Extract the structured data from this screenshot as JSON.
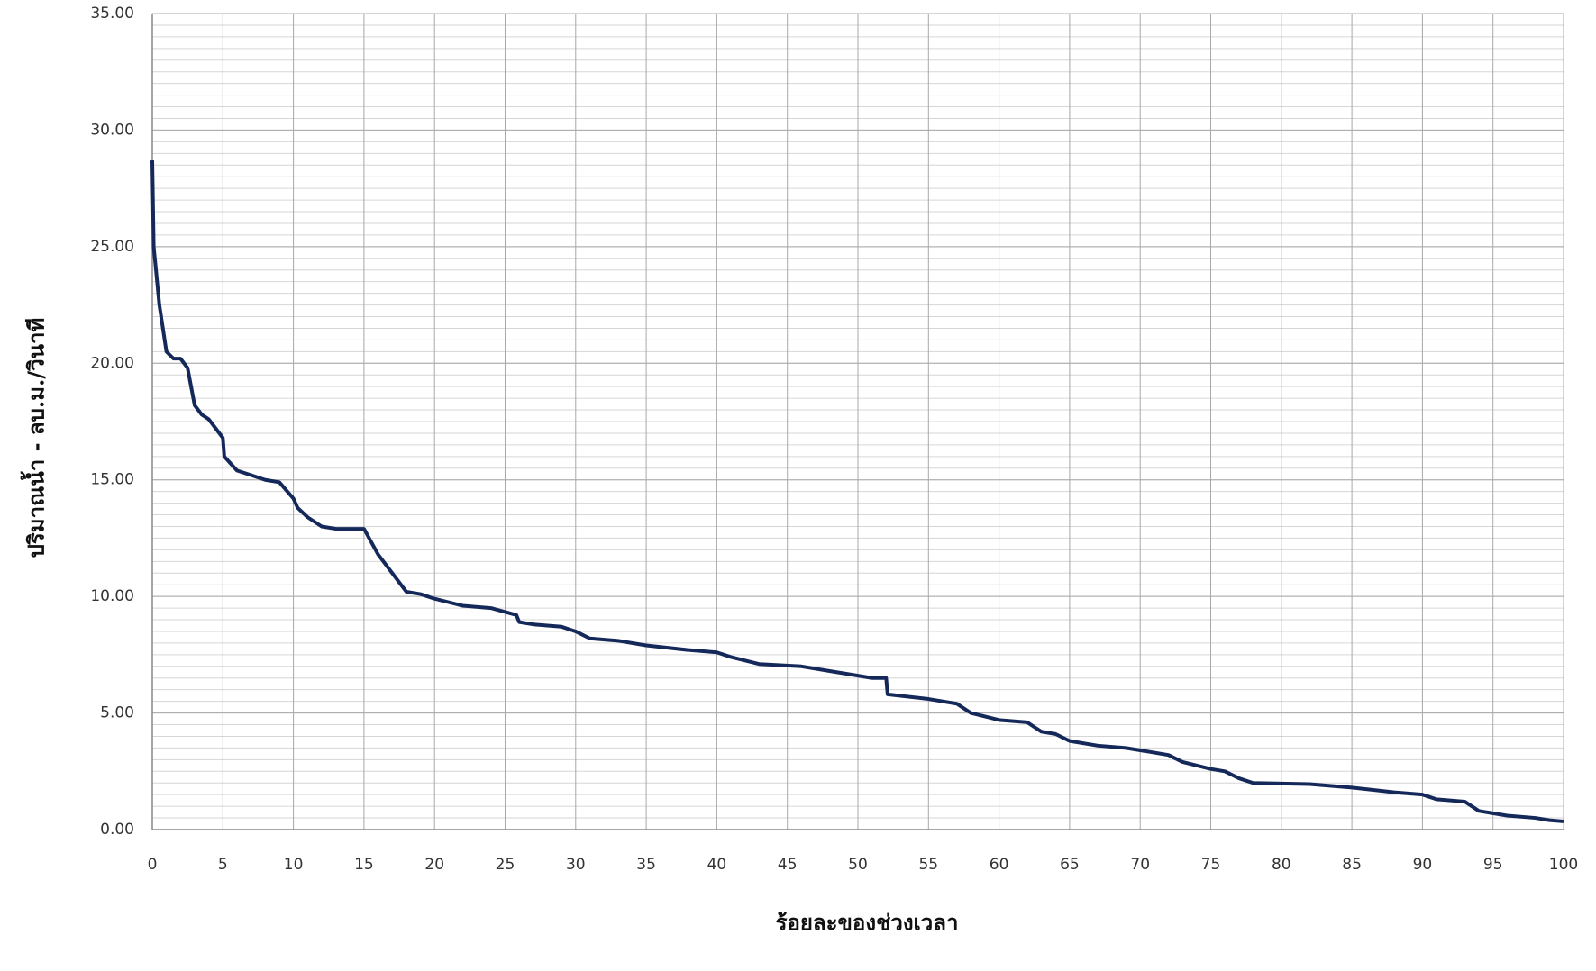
{
  "chart_data": {
    "type": "line",
    "xlabel": "ร้อยละของช่วงเวลา",
    "ylabel": "ปริมาณน้ำ - ลบ.ม./วินาที",
    "xlim": [
      0,
      100
    ],
    "xticks": [
      0,
      5,
      10,
      15,
      20,
      25,
      30,
      35,
      40,
      45,
      50,
      55,
      60,
      65,
      70,
      75,
      80,
      85,
      90,
      95,
      100
    ],
    "ylim": [
      0,
      35
    ],
    "yticks": [
      {
        "value": 0,
        "label": "0.00"
      },
      {
        "value": 5,
        "label": "5.00"
      },
      {
        "value": 10,
        "label": "10.00"
      },
      {
        "value": 15,
        "label": "15.00"
      },
      {
        "value": 20,
        "label": "20.00"
      },
      {
        "value": 25,
        "label": "25.00"
      },
      {
        "value": 30,
        "label": "30.00"
      },
      {
        "value": 35,
        "label": "35.00"
      }
    ],
    "yminor": 0.5,
    "grid": true,
    "series": [
      {
        "color": "#14285a",
        "x": [
          0,
          0.1,
          0.5,
          1,
          1.5,
          2,
          2.5,
          3,
          3.5,
          4,
          4.5,
          5,
          5.1,
          6,
          7,
          8,
          9,
          10,
          10.3,
          11,
          12,
          13,
          15,
          16,
          17,
          18,
          19,
          20,
          22,
          24,
          25.8,
          26,
          27,
          29,
          30,
          31,
          33,
          35,
          38,
          40,
          41,
          43,
          46,
          48,
          50,
          51,
          52,
          52.1,
          55,
          57,
          58,
          60,
          62,
          63,
          64,
          65,
          67,
          69,
          72,
          73,
          75,
          76,
          77,
          78,
          82,
          85,
          88,
          90,
          91,
          93,
          94,
          96,
          98,
          99,
          100
        ],
        "values": [
          28.7,
          25,
          22.5,
          20.5,
          20.2,
          20.2,
          19.8,
          18.2,
          17.8,
          17.6,
          17.2,
          16.8,
          16,
          15.4,
          15.2,
          15,
          14.9,
          14.2,
          13.8,
          13.4,
          13,
          12.9,
          12.9,
          11.8,
          11,
          10.2,
          10.1,
          9.9,
          9.6,
          9.5,
          9.2,
          8.9,
          8.8,
          8.7,
          8.5,
          8.2,
          8.1,
          7.9,
          7.7,
          7.6,
          7.4,
          7.1,
          7.0,
          6.8,
          6.6,
          6.5,
          6.5,
          5.8,
          5.6,
          5.4,
          5.0,
          4.7,
          4.6,
          4.2,
          4.1,
          3.8,
          3.6,
          3.5,
          3.2,
          2.9,
          2.6,
          2.5,
          2.2,
          2.0,
          1.95,
          1.8,
          1.6,
          1.5,
          1.3,
          1.2,
          0.8,
          0.6,
          0.5,
          0.4,
          0.35
        ]
      }
    ]
  }
}
